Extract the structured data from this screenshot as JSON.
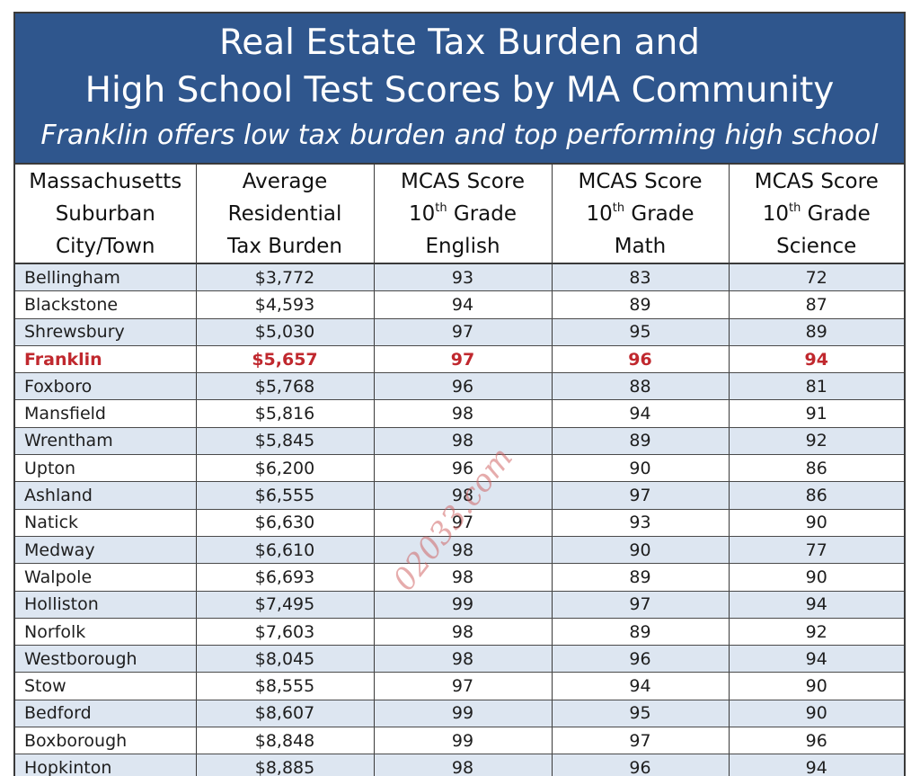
{
  "header": {
    "title_line1": "Real Estate Tax Burden and",
    "title_line2": "High School Test Scores by MA Community",
    "subtitle": "Franklin offers low tax burden and top performing high school"
  },
  "columns": [
    {
      "lines": [
        "Massachusetts",
        "Suburban",
        "City/Town"
      ]
    },
    {
      "lines": [
        "Average",
        "Residential",
        "Tax Burden"
      ]
    },
    {
      "line1": "MCAS Score",
      "line2_num": "10",
      "line2_sup": "th",
      "line2_rest": " Grade",
      "line3": "English"
    },
    {
      "line1": "MCAS Score",
      "line2_num": "10",
      "line2_sup": "th",
      "line2_rest": " Grade",
      "line3": "Math"
    },
    {
      "line1": "MCAS Score",
      "line2_num": "10",
      "line2_sup": "th",
      "line2_rest": " Grade",
      "line3": "Science"
    }
  ],
  "rows": [
    {
      "town": "Bellingham",
      "tax": "$3,772",
      "english": "93",
      "math": "83",
      "science": "72"
    },
    {
      "town": "Blackstone",
      "tax": "$4,593",
      "english": "94",
      "math": "89",
      "science": "87"
    },
    {
      "town": "Shrewsbury",
      "tax": "$5,030",
      "english": "97",
      "math": "95",
      "science": "89"
    },
    {
      "town": "Franklin",
      "tax": "$5,657",
      "english": "97",
      "math": "96",
      "science": "94",
      "highlight": true
    },
    {
      "town": "Foxboro",
      "tax": "$5,768",
      "english": "96",
      "math": "88",
      "science": "81"
    },
    {
      "town": "Mansfield",
      "tax": "$5,816",
      "english": "98",
      "math": "94",
      "science": "91"
    },
    {
      "town": "Wrentham",
      "tax": "$5,845",
      "english": "98",
      "math": "89",
      "science": "92"
    },
    {
      "town": "Upton",
      "tax": "$6,200",
      "english": "96",
      "math": "90",
      "science": "86"
    },
    {
      "town": "Ashland",
      "tax": "$6,555",
      "english": "98",
      "math": "97",
      "science": "86"
    },
    {
      "town": "Natick",
      "tax": "$6,630",
      "english": "97",
      "math": "93",
      "science": "90"
    },
    {
      "town": "Medway",
      "tax": "$6,610",
      "english": "98",
      "math": "90",
      "science": "77"
    },
    {
      "town": "Walpole",
      "tax": "$6,693",
      "english": "98",
      "math": "89",
      "science": "90"
    },
    {
      "town": "Holliston",
      "tax": "$7,495",
      "english": "99",
      "math": "97",
      "science": "94"
    },
    {
      "town": "Norfolk",
      "tax": "$7,603",
      "english": "98",
      "math": "89",
      "science": "92"
    },
    {
      "town": "Westborough",
      "tax": "$8,045",
      "english": "98",
      "math": "96",
      "science": "94"
    },
    {
      "town": "Stow",
      "tax": "$8,555",
      "english": "97",
      "math": "94",
      "science": "90"
    },
    {
      "town": "Bedford",
      "tax": "$8,607",
      "english": "99",
      "math": "95",
      "science": "90"
    },
    {
      "town": "Boxborough",
      "tax": "$8,848",
      "english": "99",
      "math": "97",
      "science": "96"
    },
    {
      "town": "Hopkinton",
      "tax": "$8,885",
      "english": "98",
      "math": "96",
      "science": "94"
    }
  ],
  "watermark": "02033.com",
  "colors": {
    "header_bg": "#2f568d",
    "band_row": "#dde6f1",
    "highlight_text": "#c0282e"
  }
}
